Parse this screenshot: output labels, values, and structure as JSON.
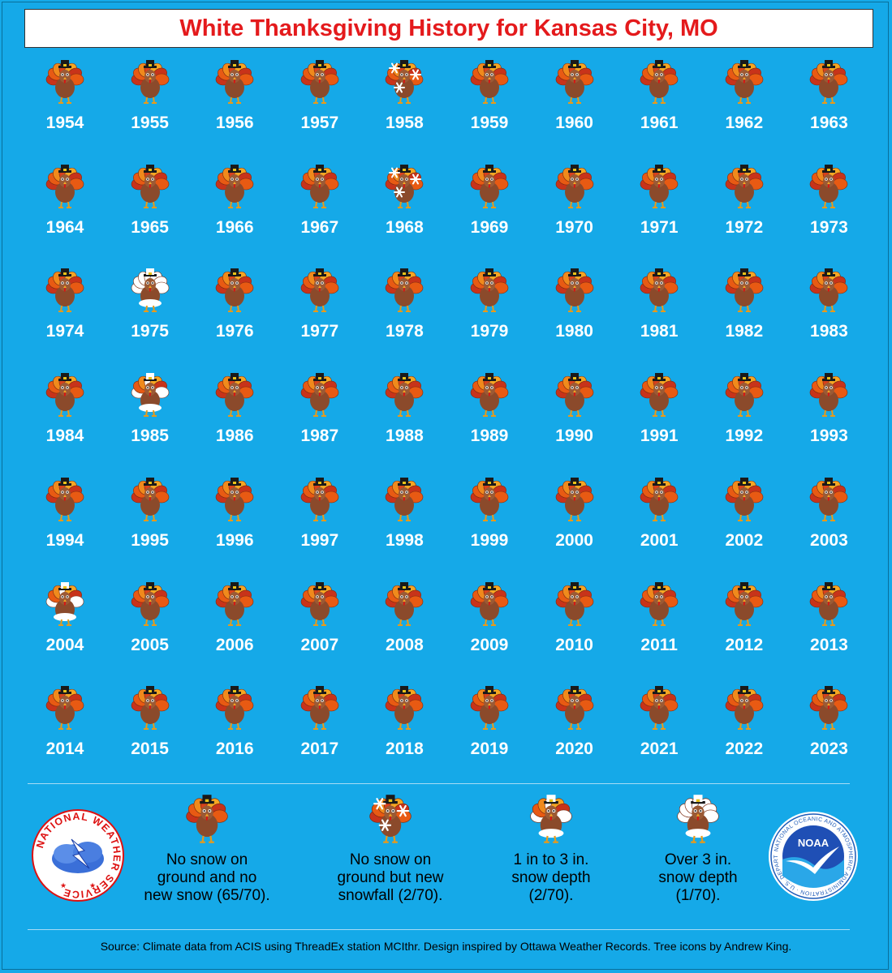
{
  "title": "White Thanksgiving History for Kansas City, MO",
  "chart_data": {
    "type": "table",
    "title": "White Thanksgiving History for Kansas City, MO",
    "categories": {
      "none": "No snow on ground and no new snow (65/70).",
      "new_snow": "No snow on ground but new snowfall (2/70).",
      "depth_1_3": "1 in to 3 in. snow depth (2/70).",
      "depth_over_3": "Over 3 in. snow depth (1/70)."
    },
    "years": [
      {
        "year": "1954",
        "cat": "none"
      },
      {
        "year": "1955",
        "cat": "none"
      },
      {
        "year": "1956",
        "cat": "none"
      },
      {
        "year": "1957",
        "cat": "none"
      },
      {
        "year": "1958",
        "cat": "new_snow"
      },
      {
        "year": "1959",
        "cat": "none"
      },
      {
        "year": "1960",
        "cat": "none"
      },
      {
        "year": "1961",
        "cat": "none"
      },
      {
        "year": "1962",
        "cat": "none"
      },
      {
        "year": "1963",
        "cat": "none"
      },
      {
        "year": "1964",
        "cat": "none"
      },
      {
        "year": "1965",
        "cat": "none"
      },
      {
        "year": "1966",
        "cat": "none"
      },
      {
        "year": "1967",
        "cat": "none"
      },
      {
        "year": "1968",
        "cat": "new_snow"
      },
      {
        "year": "1969",
        "cat": "none"
      },
      {
        "year": "1970",
        "cat": "none"
      },
      {
        "year": "1971",
        "cat": "none"
      },
      {
        "year": "1972",
        "cat": "none"
      },
      {
        "year": "1973",
        "cat": "none"
      },
      {
        "year": "1974",
        "cat": "none"
      },
      {
        "year": "1975",
        "cat": "depth_over_3"
      },
      {
        "year": "1976",
        "cat": "none"
      },
      {
        "year": "1977",
        "cat": "none"
      },
      {
        "year": "1978",
        "cat": "none"
      },
      {
        "year": "1979",
        "cat": "none"
      },
      {
        "year": "1980",
        "cat": "none"
      },
      {
        "year": "1981",
        "cat": "none"
      },
      {
        "year": "1982",
        "cat": "none"
      },
      {
        "year": "1983",
        "cat": "none"
      },
      {
        "year": "1984",
        "cat": "none"
      },
      {
        "year": "1985",
        "cat": "depth_1_3"
      },
      {
        "year": "1986",
        "cat": "none"
      },
      {
        "year": "1987",
        "cat": "none"
      },
      {
        "year": "1988",
        "cat": "none"
      },
      {
        "year": "1989",
        "cat": "none"
      },
      {
        "year": "1990",
        "cat": "none"
      },
      {
        "year": "1991",
        "cat": "none"
      },
      {
        "year": "1992",
        "cat": "none"
      },
      {
        "year": "1993",
        "cat": "none"
      },
      {
        "year": "1994",
        "cat": "none"
      },
      {
        "year": "1995",
        "cat": "none"
      },
      {
        "year": "1996",
        "cat": "none"
      },
      {
        "year": "1997",
        "cat": "none"
      },
      {
        "year": "1998",
        "cat": "none"
      },
      {
        "year": "1999",
        "cat": "none"
      },
      {
        "year": "2000",
        "cat": "none"
      },
      {
        "year": "2001",
        "cat": "none"
      },
      {
        "year": "2002",
        "cat": "none"
      },
      {
        "year": "2003",
        "cat": "none"
      },
      {
        "year": "2004",
        "cat": "depth_1_3"
      },
      {
        "year": "2005",
        "cat": "none"
      },
      {
        "year": "2006",
        "cat": "none"
      },
      {
        "year": "2007",
        "cat": "none"
      },
      {
        "year": "2008",
        "cat": "none"
      },
      {
        "year": "2009",
        "cat": "none"
      },
      {
        "year": "2010",
        "cat": "none"
      },
      {
        "year": "2011",
        "cat": "none"
      },
      {
        "year": "2012",
        "cat": "none"
      },
      {
        "year": "2013",
        "cat": "none"
      },
      {
        "year": "2014",
        "cat": "none"
      },
      {
        "year": "2015",
        "cat": "none"
      },
      {
        "year": "2016",
        "cat": "none"
      },
      {
        "year": "2017",
        "cat": "none"
      },
      {
        "year": "2018",
        "cat": "none"
      },
      {
        "year": "2019",
        "cat": "none"
      },
      {
        "year": "2020",
        "cat": "none"
      },
      {
        "year": "2021",
        "cat": "none"
      },
      {
        "year": "2022",
        "cat": "none"
      },
      {
        "year": "2023",
        "cat": "none"
      }
    ]
  },
  "legend": {
    "none_l1": "No snow on",
    "none_l2": "ground and no",
    "none_l3": "new snow (65/70).",
    "new_l1": "No snow on",
    "new_l2": "ground but new",
    "new_l3": "snowfall (2/70).",
    "d13_l1": "1 in to 3 in.",
    "d13_l2": "snow depth",
    "d13_l3": "(2/70).",
    "d3_l1": "Over 3 in.",
    "d3_l2": "snow depth",
    "d3_l3": "(1/70)."
  },
  "logos": {
    "nws": "NATIONAL WEATHER SERVICE",
    "noaa": "NOAA",
    "noaa_ring": "NATIONAL OCEANIC AND ATMOSPHERIC ADMINISTRATION · U.S. DEPARTMENT OF COMMERCE"
  },
  "source": "Source: Climate data from ACIS using ThreadEx station MCIthr. Design inspired by Ottawa Weather Records. Tree icons by Andrew King.",
  "colors": {
    "background": "#15a9e8",
    "title": "#e41a1c",
    "year_text": "#ffffff"
  }
}
